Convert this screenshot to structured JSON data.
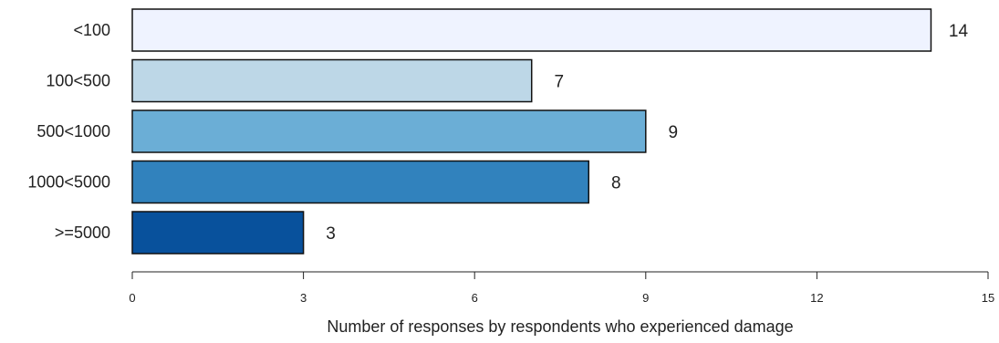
{
  "chart_data": {
    "type": "bar",
    "orientation": "horizontal",
    "categories": [
      "<100",
      "100<500",
      "500<1000",
      "1000<5000",
      ">=5000"
    ],
    "values": [
      14,
      7,
      9,
      8,
      3
    ],
    "colors": [
      "#eff3ff",
      "#bdd7e7",
      "#6baed6",
      "#3182bd",
      "#08519c"
    ],
    "xlabel": "Number of responses by respondents who experienced damage",
    "ylabel": "",
    "xlim": [
      0,
      15
    ],
    "xticks": [
      0,
      3,
      6,
      9,
      12,
      15
    ],
    "grid": false
  }
}
